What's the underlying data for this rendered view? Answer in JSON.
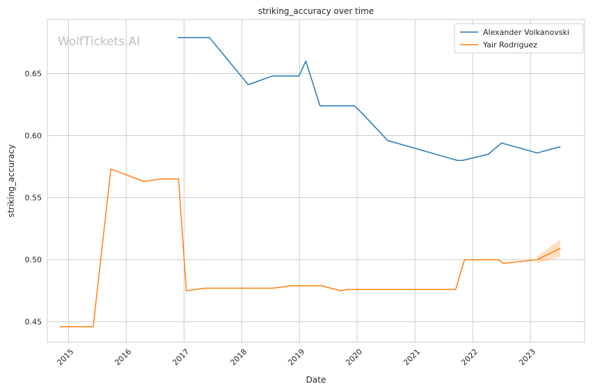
{
  "watermark": "WolfTickets.AI",
  "chart_data": {
    "type": "line",
    "title": "striking_accuracy over time",
    "xlabel": "Date",
    "ylabel": "striking_accuracy",
    "x_type": "date",
    "xlim": [
      "2014-08-20",
      "2023-12-10"
    ],
    "ylim": [
      0.4335,
      0.6935
    ],
    "x_ticks": [
      {
        "date": "2015-01-01",
        "label": "2015"
      },
      {
        "date": "2016-01-01",
        "label": "2016"
      },
      {
        "date": "2017-01-01",
        "label": "2017"
      },
      {
        "date": "2018-01-01",
        "label": "2018"
      },
      {
        "date": "2019-01-01",
        "label": "2019"
      },
      {
        "date": "2020-01-01",
        "label": "2020"
      },
      {
        "date": "2021-01-01",
        "label": "2021"
      },
      {
        "date": "2022-01-01",
        "label": "2022"
      },
      {
        "date": "2023-01-01",
        "label": "2023"
      }
    ],
    "y_ticks": [
      {
        "value": 0.45,
        "label": "0.45"
      },
      {
        "value": 0.5,
        "label": "0.50"
      },
      {
        "value": 0.55,
        "label": "0.55"
      },
      {
        "value": 0.6,
        "label": "0.60"
      },
      {
        "value": 0.65,
        "label": "0.65"
      }
    ],
    "grid": true,
    "legend_position": "top-right",
    "series": [
      {
        "name": "Alexander Volkanovski",
        "color": "#1f77b4",
        "points": [
          {
            "x": "2016-11-26",
            "y": 0.679
          },
          {
            "x": "2017-06-10",
            "y": 0.679
          },
          {
            "x": "2018-02-11",
            "y": 0.641
          },
          {
            "x": "2018-07-14",
            "y": 0.648
          },
          {
            "x": "2018-12-29",
            "y": 0.648
          },
          {
            "x": "2019-02-10",
            "y": 0.66
          },
          {
            "x": "2019-05-11",
            "y": 0.624
          },
          {
            "x": "2019-12-14",
            "y": 0.624
          },
          {
            "x": "2020-02-01",
            "y": 0.618
          },
          {
            "x": "2020-07-12",
            "y": 0.596
          },
          {
            "x": "2021-09-25",
            "y": 0.58
          },
          {
            "x": "2021-10-30",
            "y": 0.58
          },
          {
            "x": "2022-04-10",
            "y": 0.585
          },
          {
            "x": "2022-07-02",
            "y": 0.594
          },
          {
            "x": "2023-02-12",
            "y": 0.586
          },
          {
            "x": "2023-07-08",
            "y": 0.591
          }
        ]
      },
      {
        "name": "Yair Rodriguez",
        "color": "#ff7f0e",
        "points": [
          {
            "x": "2014-11-08",
            "y": 0.446
          },
          {
            "x": "2015-06-06",
            "y": 0.446
          },
          {
            "x": "2015-09-26",
            "y": 0.573
          },
          {
            "x": "2016-04-23",
            "y": 0.563
          },
          {
            "x": "2016-08-06",
            "y": 0.565
          },
          {
            "x": "2016-11-27",
            "y": 0.565
          },
          {
            "x": "2017-01-15",
            "y": 0.475
          },
          {
            "x": "2017-05-13",
            "y": 0.477
          },
          {
            "x": "2018-07-14",
            "y": 0.477
          },
          {
            "x": "2018-11-10",
            "y": 0.479
          },
          {
            "x": "2019-05-19",
            "y": 0.479
          },
          {
            "x": "2019-09-20",
            "y": 0.475
          },
          {
            "x": "2019-11-01",
            "y": 0.476
          },
          {
            "x": "2021-09-15",
            "y": 0.476
          },
          {
            "x": "2021-11-10",
            "y": 0.5
          },
          {
            "x": "2022-06-10",
            "y": 0.5
          },
          {
            "x": "2022-07-16",
            "y": 0.497
          },
          {
            "x": "2023-02-12",
            "y": 0.5
          },
          {
            "x": "2023-07-08",
            "y": 0.509
          }
        ],
        "band": [
          {
            "x": "2023-02-12",
            "low": 0.497,
            "high": 0.503
          },
          {
            "x": "2023-07-08",
            "low": 0.502,
            "high": 0.516
          }
        ]
      }
    ]
  }
}
